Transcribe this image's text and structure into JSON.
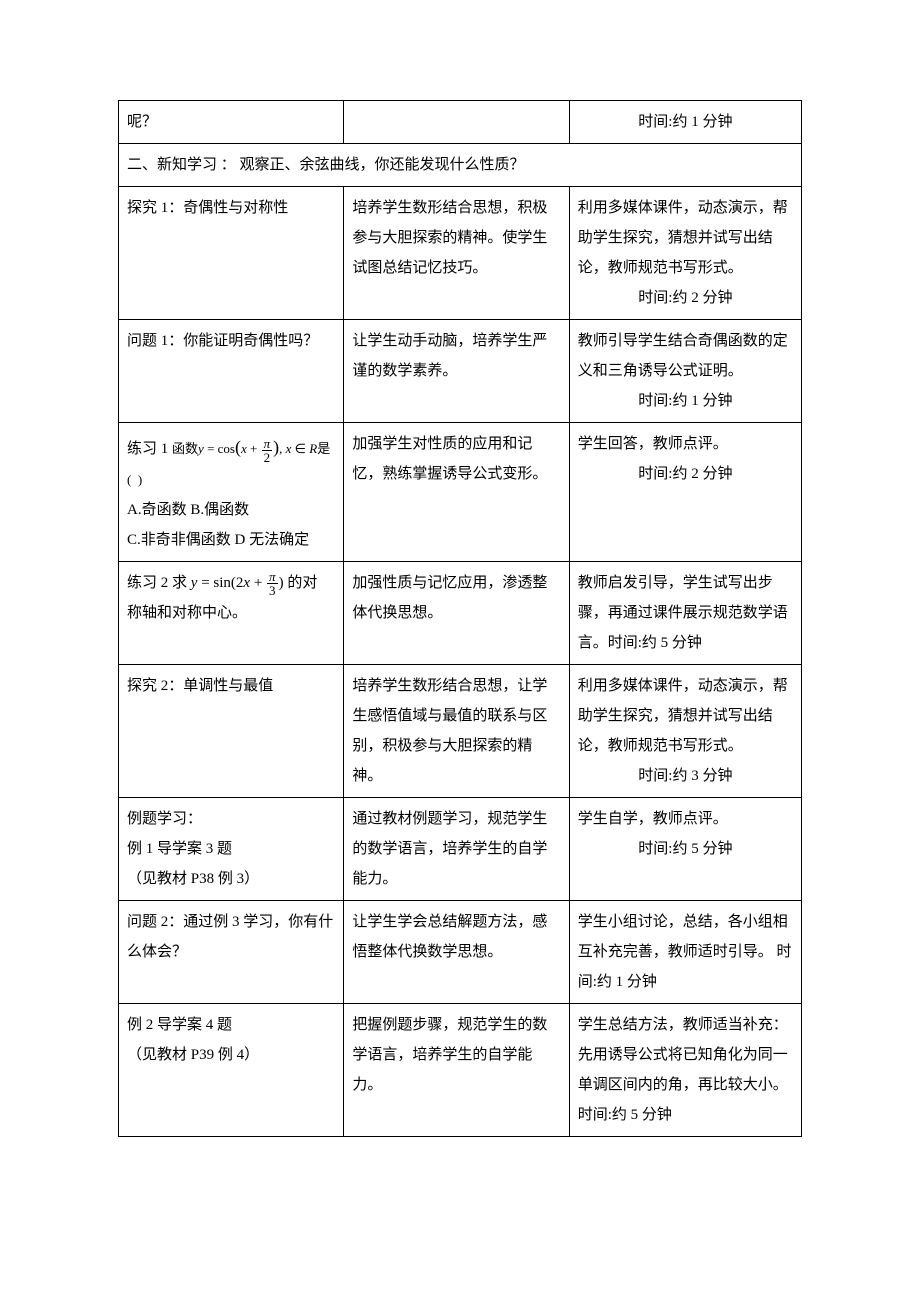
{
  "table": {
    "border_color": "#000000",
    "background_color": "#ffffff",
    "text_color": "#000000",
    "font_family": "SimSun",
    "font_size_pt": 11,
    "line_height": 2.0,
    "column_widths_pct": [
      33,
      33,
      34
    ],
    "rows": [
      {
        "cells": [
          {
            "text": "呢？"
          },
          {
            "text": ""
          },
          {
            "text": "时间:约 1 分钟",
            "align": "center"
          }
        ]
      },
      {
        "section_header": true,
        "text": "二、新知学习 ：  观察正、余弦曲线，你还能发现什么性质？"
      },
      {
        "cells": [
          {
            "text": "探究 1：奇偶性与对称性"
          },
          {
            "text": "培养学生数形结合思想，积极参与大胆探索的精神。使学生试图总结记忆技巧。"
          },
          {
            "text": "  利用多媒体课件，动态演示，帮助学生探究，猜想并试写出结论，教师规范书写形式。",
            "tail": "时间:约 2 分钟",
            "tail_align": "center"
          }
        ]
      },
      {
        "cells": [
          {
            "text": "问题 1：你能证明奇偶性吗？"
          },
          {
            "text": "让学生动手动脑，培养学生严谨的数学素养。"
          },
          {
            "text": "  教师引导学生结合奇偶函数的定义和三角诱导公式证明。",
            "tail": "时间:约 1 分钟",
            "tail_align": "center"
          }
        ]
      },
      {
        "cells": [
          {
            "lines": [
              {
                "type": "math-line",
                "prefix": "练习 1 ",
                "expr_label": "函数",
                "expr": "y = cos(x + π/2), x ∈ R 是(  )",
                "small": true
              },
              {
                "type": "text",
                "text": "A.奇函数 B.偶函数"
              },
              {
                "type": "text",
                "text": "C.非奇非偶函数 D 无法确定"
              }
            ]
          },
          {
            "text": "加强学生对性质的应用和记忆，熟练掌握诱导公式变形。"
          },
          {
            "text": "  学生回答，教师点评。",
            "tail": "时间:约 2 分钟",
            "tail_align": "center"
          }
        ]
      },
      {
        "cells": [
          {
            "lines": [
              {
                "type": "math-line",
                "prefix": "练习 2 求 ",
                "expr": "y = sin(2x + π/3)",
                "suffix": " 的对"
              },
              {
                "type": "text",
                "text": "称轴和对称中心。"
              }
            ]
          },
          {
            "text": "加强性质与记忆应用，渗透整体代换思想。"
          },
          {
            "text": "  教师启发引导，学生试写出步骤，再通过课件展示规范数学语言。时间:约 5 分钟"
          }
        ]
      },
      {
        "cells": [
          {
            "text": "探究 2：单调性与最值"
          },
          {
            "text": "培养学生数形结合思想，让学生感悟值域与最值的联系与区别，积极参与大胆探索的精神。"
          },
          {
            "text": "  利用多媒体课件，动态演示，帮助学生探究，猜想并试写出结论，教师规范书写形式。",
            "tail": "时间:约 3 分钟",
            "tail_align": "center"
          }
        ]
      },
      {
        "cells": [
          {
            "lines": [
              {
                "type": "text",
                "text": "例题学习："
              },
              {
                "type": "text",
                "text": "例 1 导学案 3 题"
              },
              {
                "type": "text",
                "text": "（见教材 P38 例 3）"
              }
            ]
          },
          {
            "text": "通过教材例题学习，规范学生的数学语言，培养学生的自学能力。"
          },
          {
            "text": "  学生自学，教师点评。",
            "tail": "时间:约 5 分钟",
            "tail_align": "center"
          }
        ]
      },
      {
        "cells": [
          {
            "text": "问题 2：通过例 3 学习，你有什么体会？"
          },
          {
            "text": "让学生学会总结解题方法，感悟整体代换数学思想。"
          },
          {
            "text": "  学生小组讨论，总结，各小组相互补充完善，教师适时引导。     时间:约 1 分钟"
          }
        ]
      },
      {
        "cells": [
          {
            "lines": [
              {
                "type": "text",
                "text": "例 2 导学案 4 题"
              },
              {
                "type": "text",
                "text": "（见教材 P39 例 4）"
              }
            ]
          },
          {
            "text": "把握例题步骤，规范学生的数学语言，培养学生的自学能力。"
          },
          {
            "text": "  学生总结方法，教师适当补充：先用诱导公式将已知角化为同一单调区间内的角，再比较大小。时间:约 5 分钟"
          }
        ]
      }
    ]
  }
}
